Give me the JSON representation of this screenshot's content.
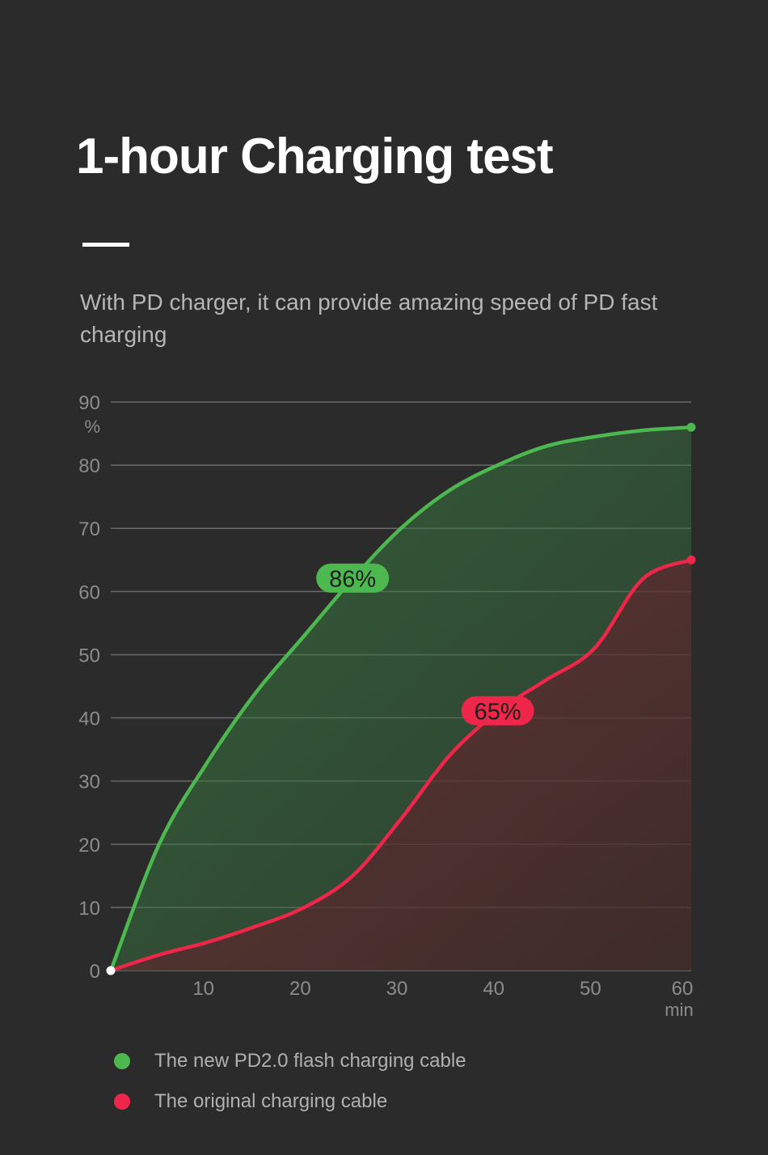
{
  "title": "1-hour Charging test",
  "subtitle": "With PD charger, it can provide amazing speed of PD fast charging",
  "colors": {
    "background": "#2b2b2c",
    "green": "#4cb84f",
    "red": "#ee2649",
    "grid": "#6a6a6a",
    "axis_text": "#8c8c8c"
  },
  "chart_data": {
    "type": "area",
    "x": [
      0,
      5,
      10,
      15,
      20,
      25,
      30,
      35,
      40,
      45,
      50,
      55,
      60
    ],
    "xlim": [
      0,
      60
    ],
    "ylim": [
      0,
      90
    ],
    "x_ticks": [
      10,
      20,
      30,
      40,
      50,
      60
    ],
    "y_ticks": [
      0,
      10,
      20,
      30,
      40,
      50,
      60,
      70,
      80,
      90
    ],
    "xlabel": "min",
    "ylabel": "%",
    "grid": true,
    "legend_position": "bottom-left",
    "series": [
      {
        "name": "The new PD2.0 flash charging cable",
        "color": "#4cb84f",
        "values": [
          0,
          20,
          33,
          44,
          53,
          62,
          70,
          76,
          80,
          83,
          84.5,
          85.5,
          86
        ],
        "annotation": {
          "x": 25,
          "label": "86%"
        }
      },
      {
        "name": "The original charging cable",
        "color": "#ee2649",
        "values": [
          0,
          2.5,
          4.5,
          7,
          10,
          15,
          24,
          34,
          41,
          46,
          51,
          62,
          65
        ],
        "annotation": {
          "x": 40,
          "label": "65%"
        }
      }
    ]
  }
}
